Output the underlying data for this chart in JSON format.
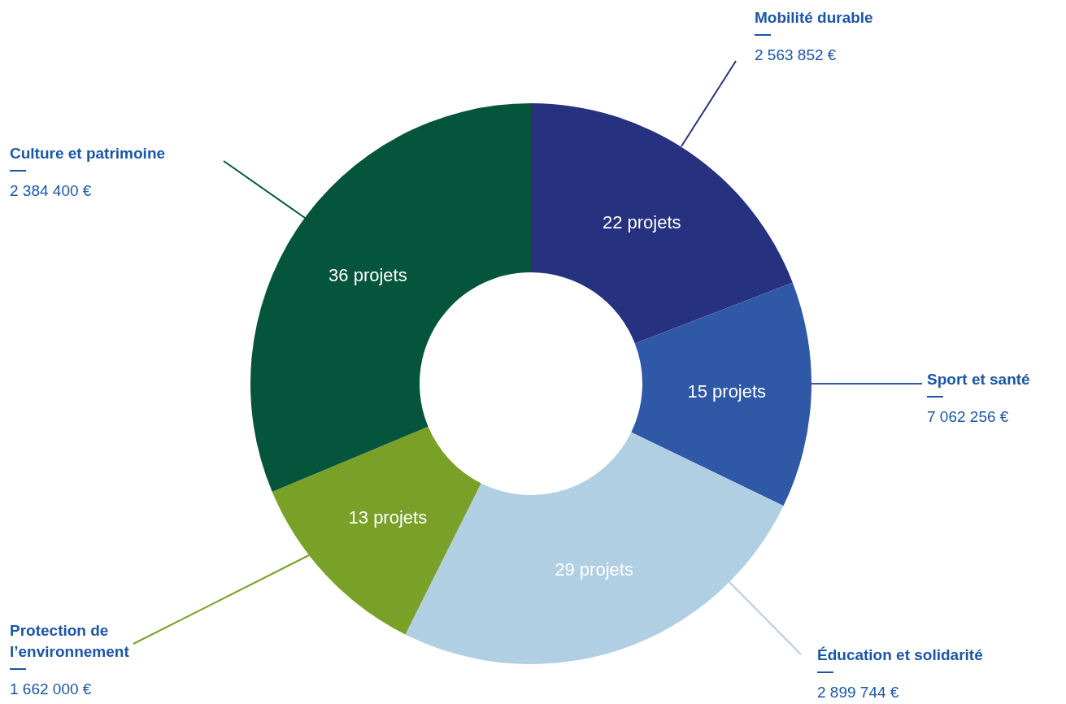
{
  "chart_data": {
    "type": "donut",
    "categories": [
      "Mobilité durable",
      "Sport et santé",
      "Éducation et solidarité",
      "Protection de l’environnement",
      "Culture et patrimoine"
    ],
    "values": [
      22,
      15,
      29,
      13,
      36
    ],
    "colors": [
      "#26317f",
      "#2f58a7",
      "#b1cfe2",
      "#79a128",
      "#04553b"
    ],
    "value_labels": [
      "22 projets",
      "15 projets",
      "29 projets",
      "13 projets",
      "36 projets"
    ],
    "annotations": [
      {
        "text": "2 563 852 €",
        "x": "Mobilité durable"
      },
      {
        "text": "7 062 256 €",
        "x": "Sport et santé"
      },
      {
        "text": "2 899 744 €",
        "x": "Éducation et solidarité"
      },
      {
        "text": "1 662 000 €",
        "x": "Protection de l’environnement"
      },
      {
        "text": "2 384 400 €",
        "x": "Culture et patrimoine"
      }
    ],
    "legend": false
  }
}
